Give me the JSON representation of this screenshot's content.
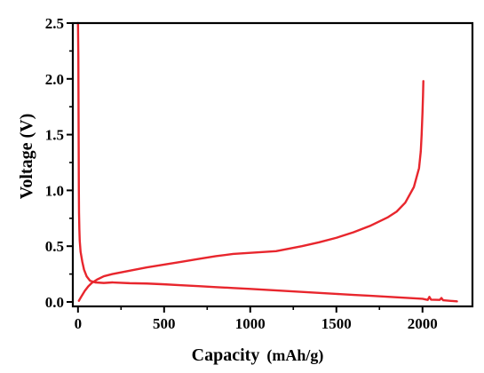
{
  "chart_data": {
    "type": "line",
    "title": "",
    "xlabel": {
      "main": "Capacity",
      "unit": "(mAh/g)"
    },
    "ylabel": "Voltage (V)",
    "xlim": [
      -30,
      2290
    ],
    "ylim": [
      -0.04,
      2.5
    ],
    "xticks": [
      0,
      500,
      1000,
      1500,
      2000
    ],
    "yticks": [
      0.0,
      0.5,
      1.0,
      1.5,
      2.0,
      2.5
    ],
    "x_tick_labels": [
      "0",
      "500",
      "1000",
      "1500",
      "2000"
    ],
    "y_tick_labels": [
      "0.0",
      "0.5",
      "1.0",
      "1.5",
      "2.0",
      "2.5"
    ],
    "grid": false,
    "legend": "none",
    "series_color": "#e8262d",
    "series": [
      {
        "points": [
          [
            0,
            2.5
          ],
          [
            2,
            2.2
          ],
          [
            3,
            1.8
          ],
          [
            4,
            1.4
          ],
          [
            5,
            1.0
          ],
          [
            6,
            0.8
          ],
          [
            8,
            0.65
          ],
          [
            10,
            0.55
          ],
          [
            15,
            0.45
          ],
          [
            25,
            0.36
          ],
          [
            35,
            0.29
          ],
          [
            50,
            0.23
          ],
          [
            70,
            0.19
          ],
          [
            100,
            0.175
          ],
          [
            150,
            0.17
          ],
          [
            200,
            0.175
          ],
          [
            300,
            0.168
          ],
          [
            400,
            0.165
          ],
          [
            500,
            0.158
          ],
          [
            600,
            0.15
          ],
          [
            700,
            0.142
          ],
          [
            800,
            0.133
          ],
          [
            900,
            0.125
          ],
          [
            1000,
            0.117
          ],
          [
            1100,
            0.108
          ],
          [
            1200,
            0.099
          ],
          [
            1300,
            0.09
          ],
          [
            1400,
            0.081
          ],
          [
            1500,
            0.072
          ],
          [
            1600,
            0.063
          ],
          [
            1700,
            0.055
          ],
          [
            1800,
            0.046
          ],
          [
            1900,
            0.037
          ],
          [
            2000,
            0.028
          ],
          [
            2030,
            0.018
          ],
          [
            2040,
            0.045
          ],
          [
            2050,
            0.02
          ],
          [
            2100,
            0.018
          ],
          [
            2110,
            0.035
          ],
          [
            2120,
            0.015
          ],
          [
            2200,
            0.005
          ]
        ]
      },
      {
        "points": [
          [
            5,
            0.01
          ],
          [
            20,
            0.05
          ],
          [
            40,
            0.1
          ],
          [
            60,
            0.14
          ],
          [
            80,
            0.17
          ],
          [
            110,
            0.2
          ],
          [
            150,
            0.23
          ],
          [
            200,
            0.25
          ],
          [
            300,
            0.28
          ],
          [
            400,
            0.31
          ],
          [
            500,
            0.335
          ],
          [
            600,
            0.36
          ],
          [
            700,
            0.385
          ],
          [
            800,
            0.41
          ],
          [
            900,
            0.43
          ],
          [
            1000,
            0.44
          ],
          [
            1100,
            0.45
          ],
          [
            1150,
            0.455
          ],
          [
            1200,
            0.47
          ],
          [
            1300,
            0.5
          ],
          [
            1400,
            0.535
          ],
          [
            1500,
            0.575
          ],
          [
            1600,
            0.625
          ],
          [
            1700,
            0.685
          ],
          [
            1800,
            0.76
          ],
          [
            1850,
            0.81
          ],
          [
            1900,
            0.89
          ],
          [
            1950,
            1.03
          ],
          [
            1980,
            1.2
          ],
          [
            1990,
            1.35
          ],
          [
            1995,
            1.5
          ],
          [
            2000,
            1.7
          ],
          [
            2003,
            1.85
          ],
          [
            2005,
            1.98
          ]
        ]
      }
    ]
  }
}
